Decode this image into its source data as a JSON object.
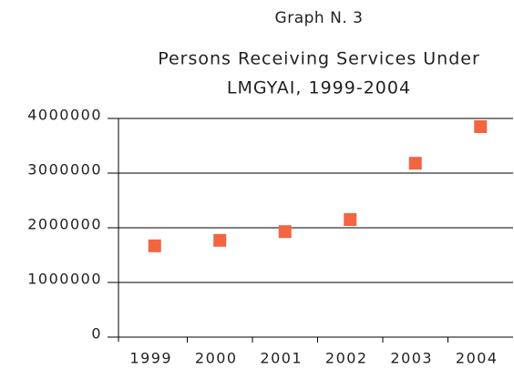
{
  "chart_data": {
    "type": "scatter",
    "title": "Graph N. 3",
    "subtitle_lines": [
      "Persons Receiving Services Under",
      "LMGYAI, 1999-2004"
    ],
    "categories": [
      "1999",
      "2000",
      "2001",
      "2002",
      "2003",
      "2004"
    ],
    "values": [
      1670000,
      1770000,
      1930000,
      2150000,
      3180000,
      3850000
    ],
    "color": "#f26540",
    "ylim": [
      0,
      4000000
    ],
    "yticks": [
      0,
      1000000,
      2000000,
      3000000,
      4000000
    ],
    "grid": true
  }
}
